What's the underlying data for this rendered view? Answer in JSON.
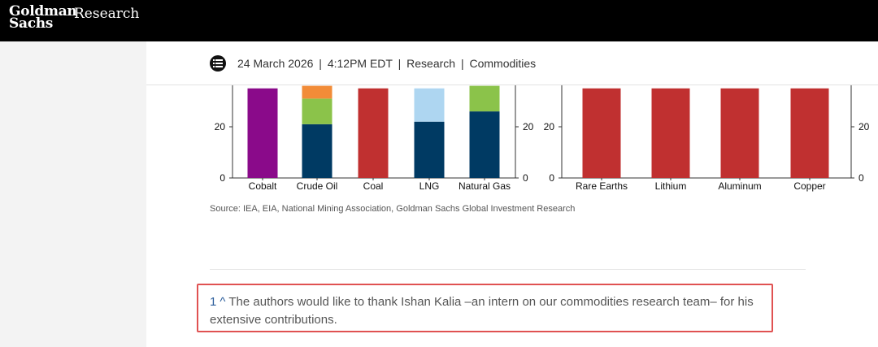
{
  "header": {
    "logo_line1": "Goldman",
    "logo_line2": "Sachs",
    "research_label": "Research"
  },
  "meta": {
    "date": "24 March 2026",
    "time": "4:12PM EDT",
    "section": "Research",
    "topic": "Commodities",
    "separator": "|"
  },
  "chart_data": [
    {
      "type": "bar",
      "stacked": true,
      "categories": [
        "Cobalt",
        "Crude Oil",
        "Coal",
        "LNG",
        "Natural Gas"
      ],
      "series": [
        {
          "name": "navy",
          "color": "#003a63",
          "values": [
            0,
            21,
            0,
            22,
            26
          ]
        },
        {
          "name": "green",
          "color": "#8bc34a",
          "values": [
            0,
            10,
            0,
            0,
            10
          ]
        },
        {
          "name": "orange",
          "color": "#f28c38",
          "values": [
            0,
            5,
            0,
            0,
            0
          ]
        },
        {
          "name": "light-blue",
          "color": "#aed6f1",
          "values": [
            0,
            0,
            0,
            13,
            0
          ]
        },
        {
          "name": "red",
          "color": "#c03030",
          "values": [
            0,
            0,
            35,
            0,
            0
          ]
        },
        {
          "name": "purple",
          "color": "#8a0a8a",
          "values": [
            35,
            0,
            0,
            0,
            0
          ]
        }
      ],
      "yticks": [
        0,
        20
      ],
      "ylim": [
        0,
        35
      ]
    },
    {
      "type": "bar",
      "stacked": true,
      "categories": [
        "Rare Earths",
        "Lithium",
        "Aluminum",
        "Copper"
      ],
      "series": [
        {
          "name": "red",
          "color": "#c03030",
          "values": [
            35,
            35,
            35,
            35
          ]
        }
      ],
      "yticks": [
        0,
        20
      ],
      "ylim": [
        0,
        35
      ]
    }
  ],
  "source": "Source: IEA, EIA, National Mining Association, Goldman Sachs Global Investment Research",
  "footnote": {
    "number": "1",
    "caret": "^",
    "text": "The authors would like to thank Ishan Kalia –an intern on our commodities research team– for his extensive contributions."
  }
}
